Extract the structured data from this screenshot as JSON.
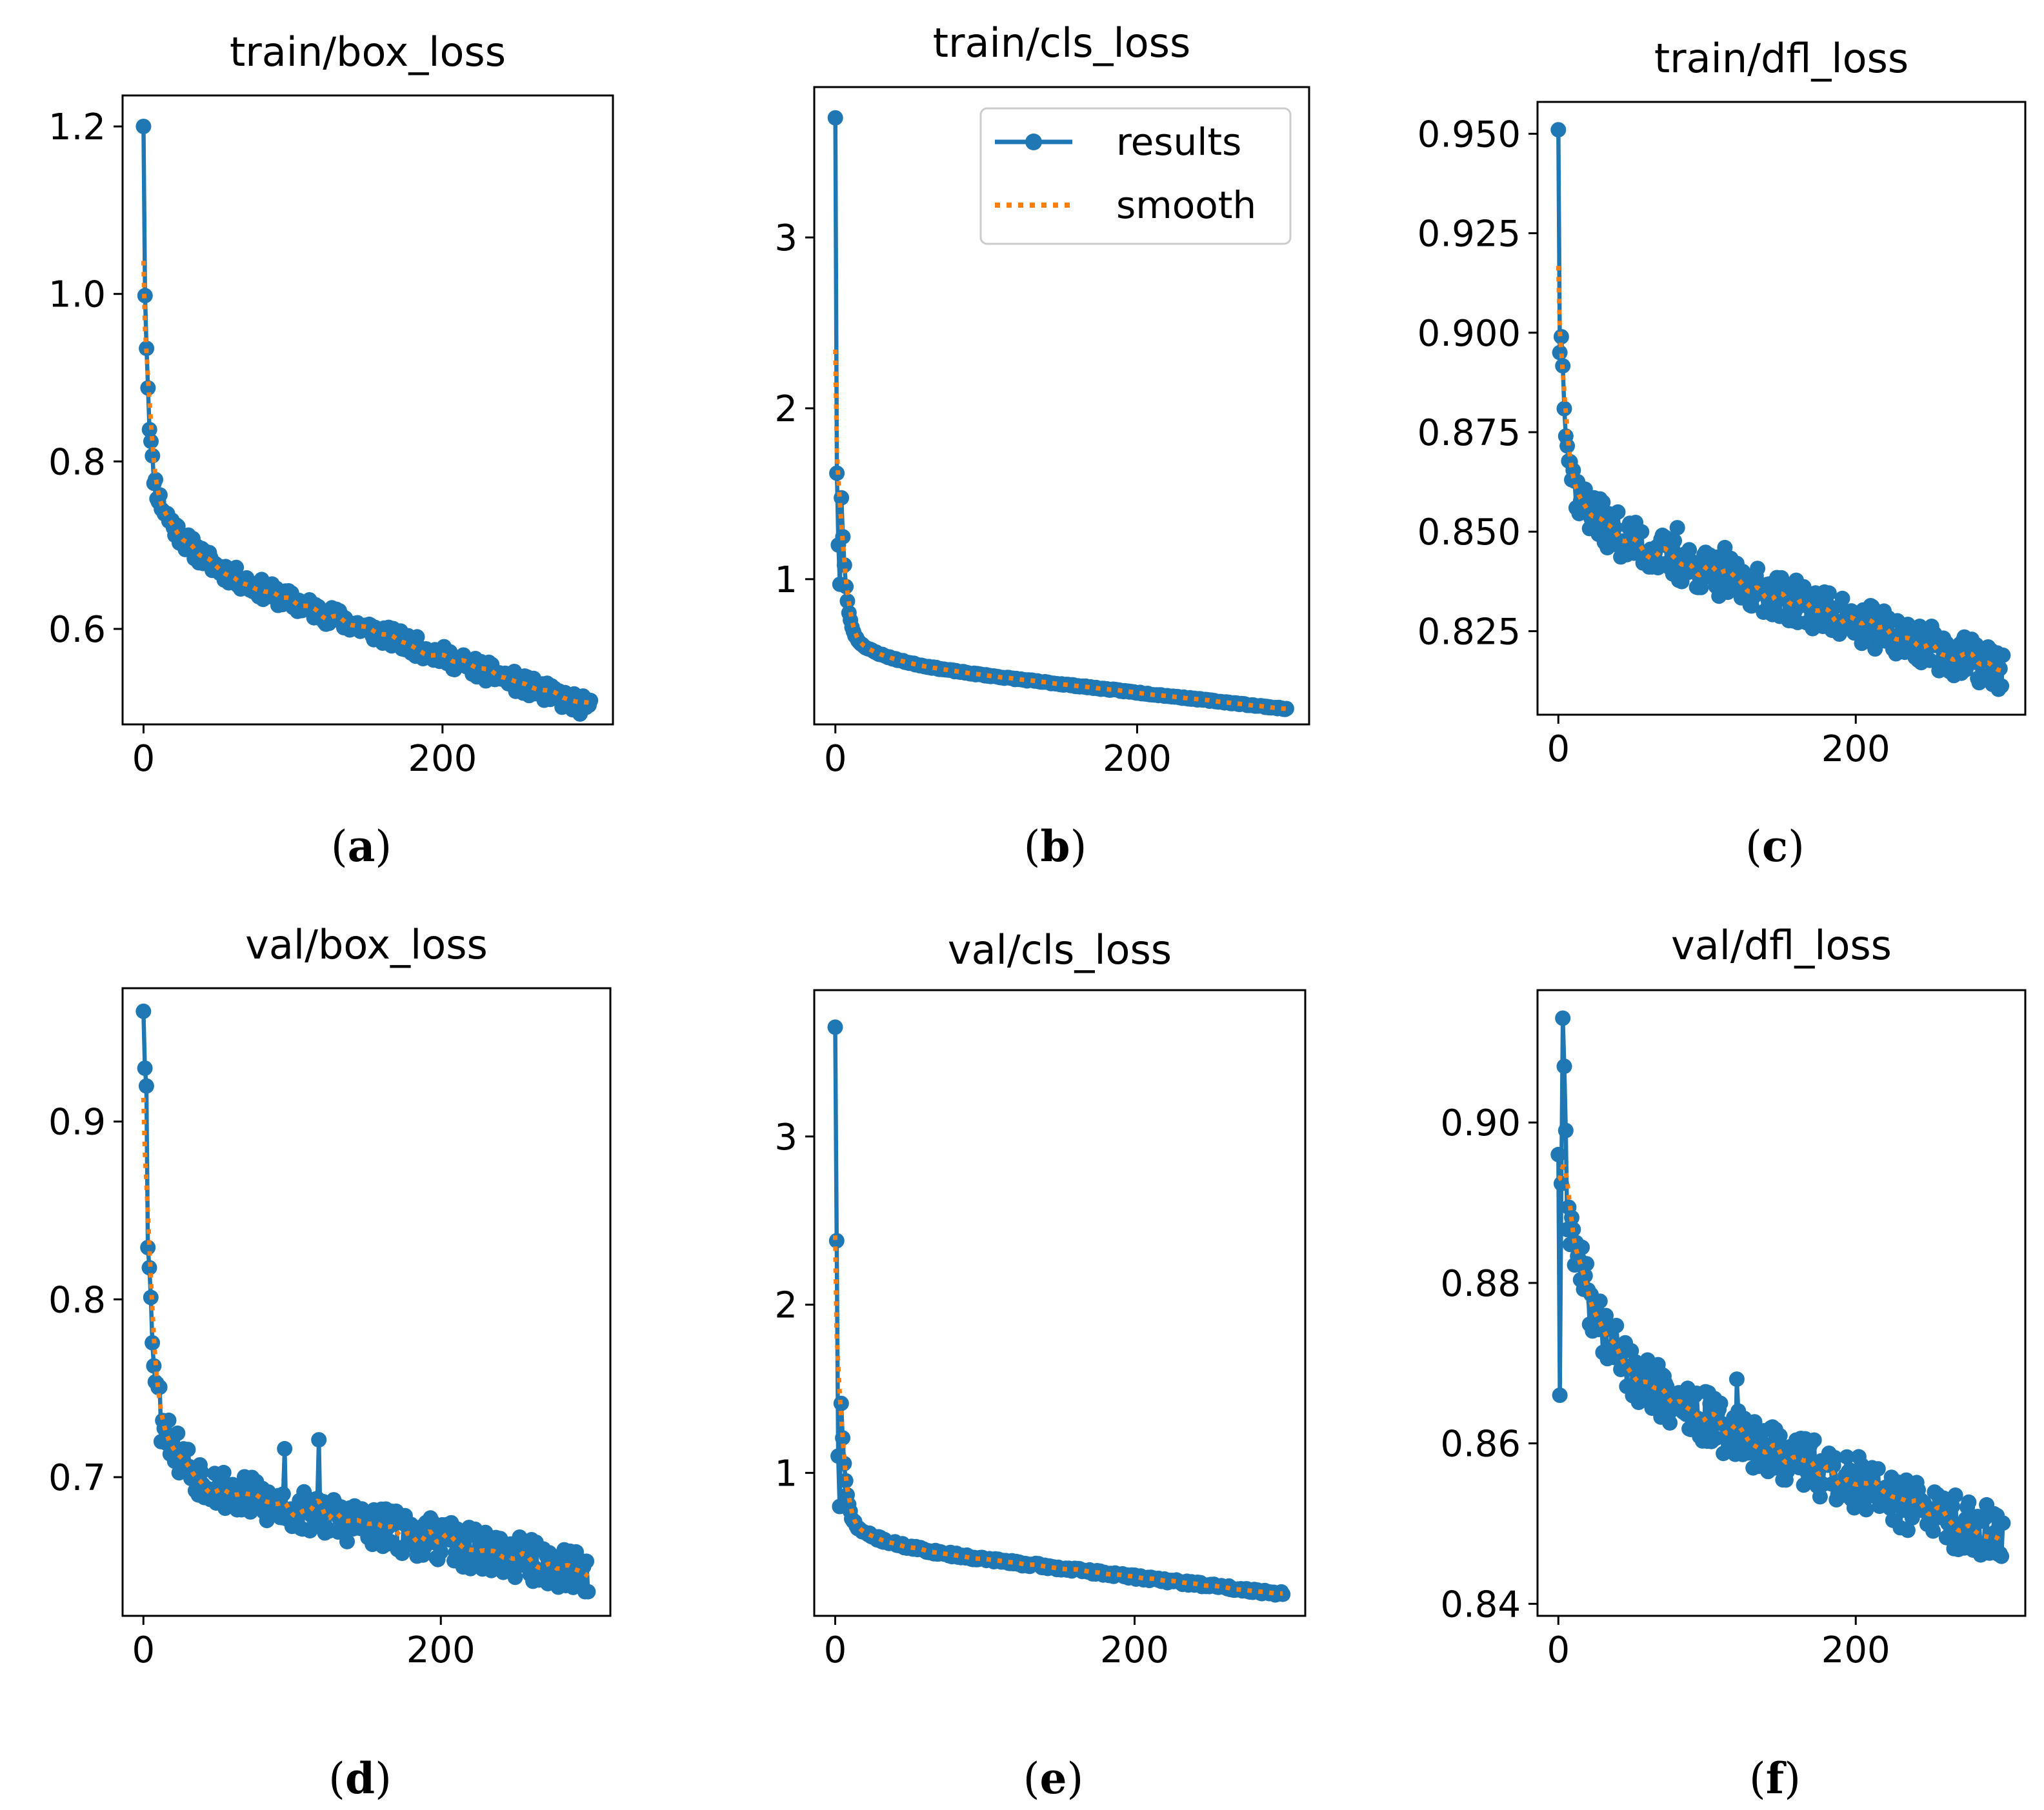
{
  "colors": {
    "results": "#1f77b4",
    "smooth": "#ff7f0e",
    "axis": "#000000",
    "background": "#ffffff"
  },
  "legend": {
    "results_label": "results",
    "smooth_label": "smooth",
    "placement": "top-right",
    "panel": "train/cls_loss"
  },
  "chart_data": [
    {
      "type": "line",
      "title": "train/box_loss",
      "caption_letter": "a",
      "xlabel": "",
      "ylabel": "",
      "xlim": [
        -14,
        314
      ],
      "ylim": [
        0.486,
        1.237
      ],
      "xticks": [
        0,
        200
      ],
      "yticks": [
        0.6,
        0.8,
        1.0,
        1.2
      ],
      "ytick_labels": [
        "0.6",
        "0.8",
        "1.0",
        "1.2"
      ],
      "profile": {
        "start": 1.2,
        "end": 0.505,
        "curve": [
          0.58,
          0.42,
          2.3,
          0.35,
          22
        ],
        "noise": 0.012,
        "spikes": [
          [
            1,
            0.998
          ],
          [
            2,
            0.935
          ]
        ],
        "seed": 11
      },
      "series": [
        {
          "name": "results",
          "style": "line-marker"
        },
        {
          "name": "smooth",
          "style": "dotted"
        }
      ]
    },
    {
      "type": "line",
      "title": "train/cls_loss",
      "caption_letter": "b",
      "xlabel": "",
      "ylabel": "",
      "xlim": [
        -14,
        314
      ],
      "ylim": [
        0.15,
        3.88
      ],
      "xticks": [
        0,
        200
      ],
      "yticks": [
        1,
        2,
        3
      ],
      "ytick_labels": [
        "1",
        "2",
        "3"
      ],
      "profile": {
        "start": 3.7,
        "end": 0.24,
        "curve": [
          0.86,
          0.14,
          3.0,
          0.4,
          25
        ],
        "noise": 0.004,
        "spikes": [
          [
            1,
            1.62
          ],
          [
            2,
            1.2
          ],
          [
            3,
            0.97
          ]
        ],
        "seed": 23
      },
      "series": [
        {
          "name": "results",
          "style": "line-marker"
        },
        {
          "name": "smooth",
          "style": "dotted"
        }
      ]
    },
    {
      "type": "line",
      "title": "train/dfl_loss",
      "caption_letter": "c",
      "xlabel": "",
      "ylabel": "",
      "xlim": [
        -14,
        314
      ],
      "ylim": [
        0.804,
        0.958
      ],
      "xticks": [
        0,
        200
      ],
      "yticks": [
        0.825,
        0.85,
        0.875,
        0.9,
        0.925,
        0.95
      ],
      "ytick_labels": [
        "0.825",
        "0.850",
        "0.875",
        "0.900",
        "0.925",
        "0.950"
      ],
      "profile": {
        "start": 0.951,
        "end": 0.815,
        "curve": [
          0.62,
          0.38,
          3.0,
          0.28,
          22
        ],
        "noise": 0.0055,
        "spikes": [
          [
            1,
            0.895
          ],
          [
            2,
            0.899
          ],
          [
            80,
            0.851
          ],
          [
            112,
            0.846
          ]
        ],
        "seed": 37
      },
      "series": [
        {
          "name": "results",
          "style": "line-marker"
        },
        {
          "name": "smooth",
          "style": "dotted"
        }
      ]
    },
    {
      "type": "line",
      "title": "val/box_loss",
      "caption_letter": "d",
      "xlabel": "",
      "ylabel": "",
      "xlim": [
        -14,
        314
      ],
      "ylim": [
        0.622,
        0.975
      ],
      "xticks": [
        0,
        200
      ],
      "yticks": [
        0.7,
        0.8,
        0.9
      ],
      "ytick_labels": [
        "0.7",
        "0.8",
        "0.9"
      ],
      "profile": {
        "start": 0.962,
        "end": 0.646,
        "curve": [
          0.62,
          0.38,
          3.5,
          0.55,
          18
        ],
        "noise": 0.012,
        "spikes": [
          [
            1,
            0.93
          ],
          [
            2,
            0.92
          ],
          [
            12,
            0.72
          ],
          [
            95,
            0.716
          ],
          [
            118,
            0.721
          ]
        ],
        "seed": 53
      },
      "series": [
        {
          "name": "results",
          "style": "line-marker"
        },
        {
          "name": "smooth",
          "style": "dotted"
        }
      ]
    },
    {
      "type": "line",
      "title": "val/cls_loss",
      "caption_letter": "e",
      "xlabel": "",
      "ylabel": "",
      "xlim": [
        -14,
        314
      ],
      "ylim": [
        0.15,
        3.87
      ],
      "xticks": [
        0,
        200
      ],
      "yticks": [
        1,
        2,
        3
      ],
      "ytick_labels": [
        "1",
        "2",
        "3"
      ],
      "profile": {
        "start": 3.65,
        "end": 0.28,
        "curve": [
          0.86,
          0.14,
          2.8,
          0.35,
          25
        ],
        "noise": 0.012,
        "spikes": [
          [
            1,
            2.38
          ],
          [
            2,
            1.1
          ],
          [
            3,
            0.8
          ]
        ],
        "seed": 71
      },
      "series": [
        {
          "name": "results",
          "style": "line-marker"
        },
        {
          "name": "smooth",
          "style": "dotted"
        }
      ]
    },
    {
      "type": "line",
      "title": "val/dfl_loss",
      "caption_letter": "f",
      "xlabel": "",
      "ylabel": "",
      "xlim": [
        -14,
        314
      ],
      "ylim": [
        0.8385,
        0.9165
      ],
      "xticks": [
        0,
        200
      ],
      "yticks": [
        0.84,
        0.86,
        0.88,
        0.9
      ],
      "ytick_labels": [
        "0.84",
        "0.86",
        "0.88",
        "0.90"
      ],
      "profile": {
        "start": 0.896,
        "end": 0.848,
        "curve": [
          0.45,
          0.55,
          18,
          0.25,
          75
        ],
        "noise": 0.0035,
        "spikes": [
          [
            1,
            0.866
          ],
          [
            3,
            0.913
          ],
          [
            4,
            0.907
          ],
          [
            5,
            0.899
          ],
          [
            120,
            0.868
          ],
          [
            295,
            0.851
          ]
        ],
        "seed": 89
      },
      "series": [
        {
          "name": "results",
          "style": "line-marker"
        },
        {
          "name": "smooth",
          "style": "dotted"
        }
      ]
    }
  ]
}
